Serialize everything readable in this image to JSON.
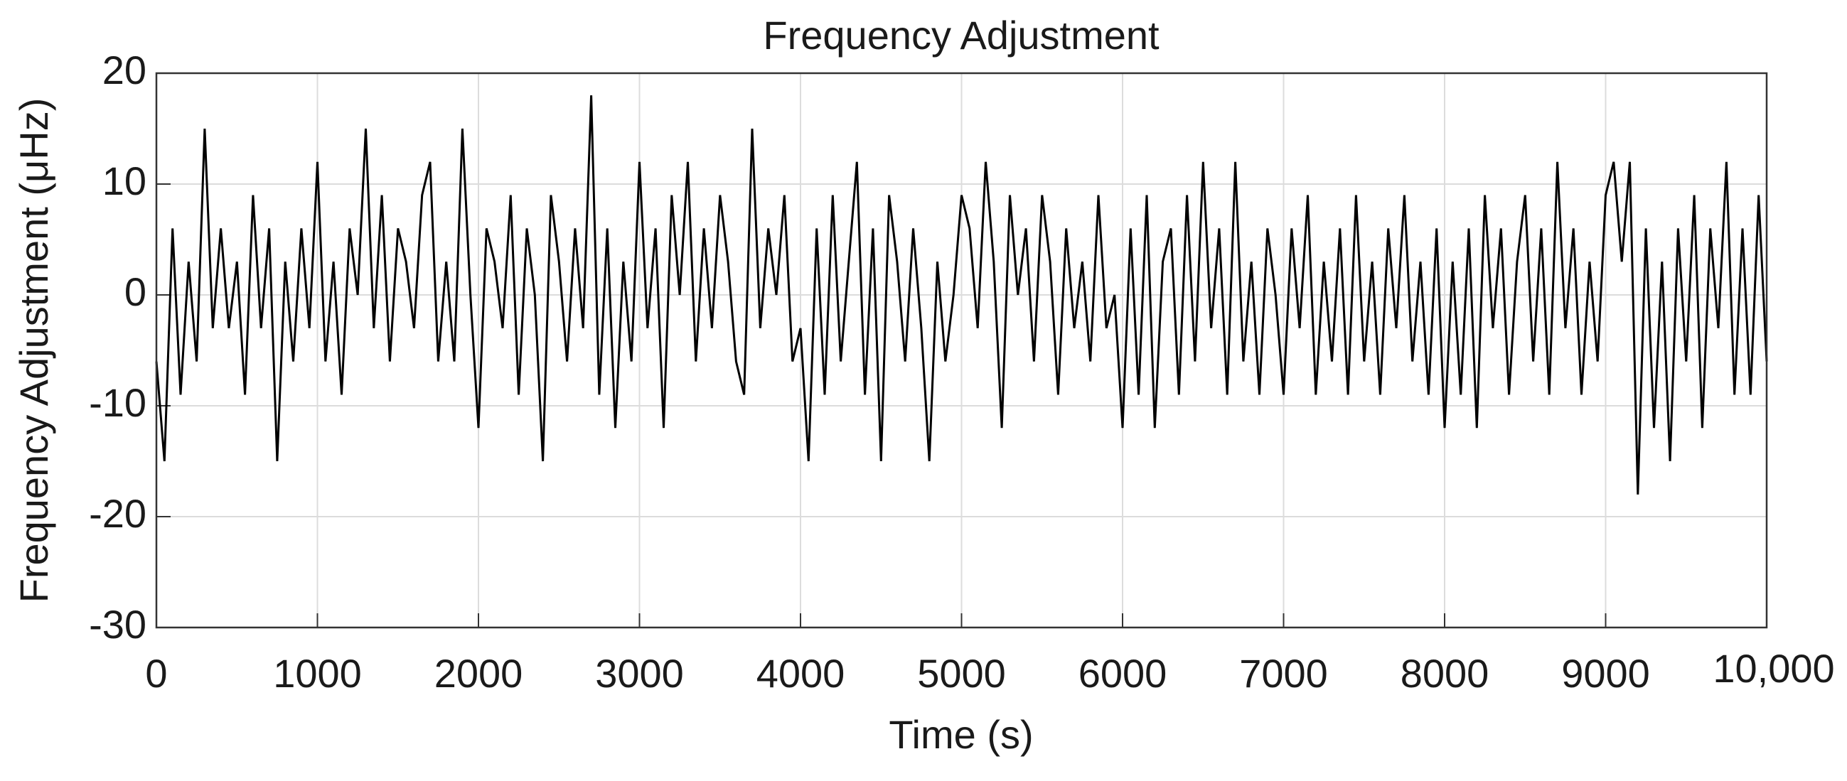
{
  "chart_data": {
    "type": "line",
    "title": "Frequency Adjustment",
    "xlabel": "Time (s)",
    "ylabel": "Frequency Adjustment (μHz)",
    "xlim": [
      0,
      10000
    ],
    "ylim": [
      -30,
      20
    ],
    "xticks": [
      0,
      1000,
      2000,
      3000,
      4000,
      5000,
      6000,
      7000,
      8000,
      9000,
      {
        "value": 10000,
        "label": "10,000"
      }
    ],
    "yticks": [
      -30,
      -20,
      -10,
      0,
      10,
      20
    ],
    "grid": true,
    "x": [
      0,
      50,
      100,
      150,
      200,
      250,
      300,
      350,
      400,
      450,
      500,
      550,
      600,
      650,
      700,
      750,
      800,
      850,
      900,
      950,
      1000,
      1050,
      1100,
      1150,
      1200,
      1250,
      1300,
      1350,
      1400,
      1450,
      1500,
      1550,
      1600,
      1650,
      1700,
      1750,
      1800,
      1850,
      1900,
      1950,
      2000,
      2050,
      2100,
      2150,
      2200,
      2250,
      2300,
      2350,
      2400,
      2450,
      2500,
      2550,
      2600,
      2650,
      2700,
      2750,
      2800,
      2850,
      2900,
      2950,
      3000,
      3050,
      3100,
      3150,
      3200,
      3250,
      3300,
      3350,
      3400,
      3450,
      3500,
      3550,
      3600,
      3650,
      3700,
      3750,
      3800,
      3850,
      3900,
      3950,
      4000,
      4050,
      4100,
      4150,
      4200,
      4250,
      4300,
      4350,
      4400,
      4450,
      4500,
      4550,
      4600,
      4650,
      4700,
      4750,
      4800,
      4850,
      4900,
      4950,
      5000,
      5050,
      5100,
      5150,
      5200,
      5250,
      5300,
      5350,
      5400,
      5450,
      5500,
      5550,
      5600,
      5650,
      5700,
      5750,
      5800,
      5850,
      5900,
      5950,
      6000,
      6050,
      6100,
      6150,
      6200,
      6250,
      6300,
      6350,
      6400,
      6450,
      6500,
      6550,
      6600,
      6650,
      6700,
      6750,
      6800,
      6850,
      6900,
      6950,
      7000,
      7050,
      7100,
      7150,
      7200,
      7250,
      7300,
      7350,
      7400,
      7450,
      7500,
      7550,
      7600,
      7650,
      7700,
      7750,
      7800,
      7850,
      7900,
      7950,
      8000,
      8050,
      8100,
      8150,
      8200,
      8250,
      8300,
      8350,
      8400,
      8450,
      8500,
      8550,
      8600,
      8650,
      8700,
      8750,
      8800,
      8850,
      8900,
      8950,
      9000,
      9050,
      9100,
      9150,
      9200,
      9250,
      9300,
      9350,
      9400,
      9450,
      9500,
      9550,
      9600,
      9650,
      9700,
      9750,
      9800,
      9850,
      9900,
      9950,
      10000
    ],
    "series": [
      {
        "color": "#000000",
        "values": [
          -6,
          -15,
          6,
          -9,
          3,
          -6,
          15,
          -3,
          6,
          -3,
          3,
          -9,
          9,
          -3,
          6,
          -15,
          3,
          -6,
          6,
          -3,
          12,
          -6,
          3,
          -9,
          6,
          0,
          15,
          -3,
          9,
          -6,
          6,
          3,
          -3,
          9,
          12,
          -6,
          3,
          -6,
          15,
          0,
          -12,
          6,
          3,
          -3,
          9,
          -9,
          6,
          0,
          -15,
          9,
          3,
          -6,
          6,
          -3,
          18,
          -9,
          6,
          -12,
          3,
          -6,
          12,
          -3,
          6,
          -12,
          9,
          0,
          12,
          -6,
          6,
          -3,
          9,
          3,
          -6,
          -9,
          15,
          -3,
          6,
          0,
          9,
          -6,
          -3,
          -15,
          6,
          -9,
          9,
          -6,
          3,
          12,
          -9,
          6,
          -15,
          9,
          3,
          -6,
          6,
          -3,
          -15,
          3,
          -6,
          0,
          9,
          6,
          -3,
          12,
          3,
          -12,
          9,
          0,
          6,
          -6,
          9,
          3,
          -9,
          6,
          -3,
          3,
          -6,
          9,
          -3,
          0,
          -12,
          6,
          -9,
          9,
          -12,
          3,
          6,
          -9,
          9,
          -6,
          12,
          -3,
          6,
          -9,
          12,
          -6,
          3,
          -9,
          6,
          0,
          -9,
          6,
          -3,
          9,
          -9,
          3,
          -6,
          6,
          -9,
          9,
          -6,
          3,
          -9,
          6,
          -3,
          9,
          -6,
          3,
          -9,
          6,
          -12,
          3,
          -9,
          6,
          -12,
          9,
          -3,
          6,
          -9,
          3,
          9,
          -6,
          6,
          -9,
          12,
          -3,
          6,
          -9,
          3,
          -6,
          9,
          12,
          3,
          12,
          -18,
          6,
          -12,
          3,
          -15,
          6,
          -6,
          9,
          -12,
          6,
          -3,
          12,
          -9,
          6,
          -9,
          9,
          -6
        ]
      }
    ]
  }
}
